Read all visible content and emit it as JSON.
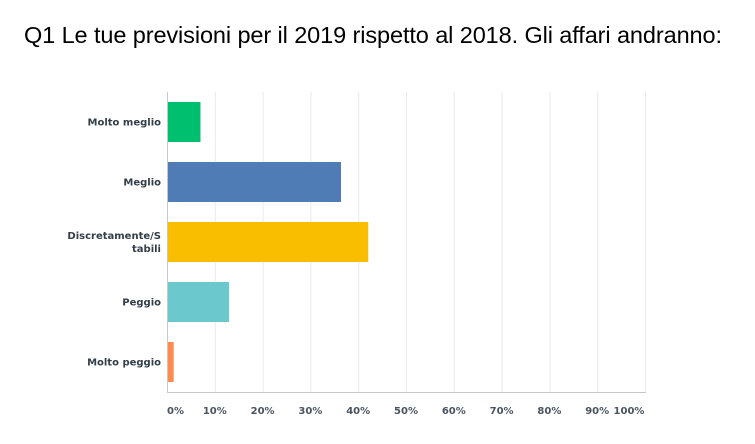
{
  "title": "Q1 Le tue previsioni per il 2019 rispetto al 2018. Gli affari andranno:",
  "chart_data": {
    "type": "bar",
    "orientation": "horizontal",
    "title": "Q1 Le tue previsioni per il 2019 rispetto al 2018. Gli affari andranno:",
    "categories": [
      [
        "Molto meglio"
      ],
      [
        "Meglio"
      ],
      [
        "Discretamente/S",
        "tabili"
      ],
      [
        "Peggio"
      ],
      [
        "Molto peggio"
      ]
    ],
    "values": [
      7,
      36.4,
      42.1,
      13,
      1.4
    ],
    "colors": [
      "#00bf6f",
      "#507cb6",
      "#f9be00",
      "#6bc8cd",
      "#ff8b4f"
    ],
    "xlim": [
      0,
      100
    ],
    "x_ticks": [
      "0%",
      "10%",
      "20%",
      "30%",
      "40%",
      "50%",
      "60%",
      "70%",
      "80%",
      "90%",
      "100%"
    ],
    "grid": true,
    "xlabel": "",
    "ylabel": ""
  }
}
